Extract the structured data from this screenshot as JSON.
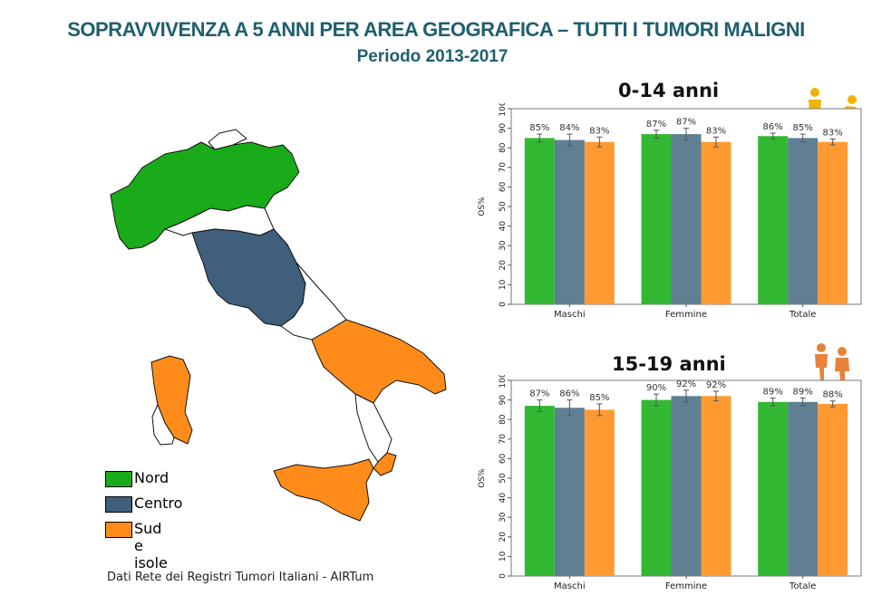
{
  "header": {
    "title": "SOPRAVVIVENZA A 5 ANNI PER AREA GEOGRAFICA – TUTTI I TUMORI MALIGNI",
    "subtitle": "Periodo 2013-2017"
  },
  "legend": {
    "items": [
      {
        "label": "Nord",
        "color": "#1aab1a"
      },
      {
        "label": "Centro",
        "color": "#3f5f7a"
      },
      {
        "label": "Sud e isole",
        "color": "#ff8c1a"
      }
    ]
  },
  "source": "Dati Rete dei Registri Tumori Italiani - AIRTum",
  "colors": {
    "nord": "#33b833",
    "centro": "#5f7f93",
    "sud": "#ff9a33",
    "map_white": "#ffffff",
    "icon": "#f0b400",
    "icon2": "#e8823a"
  },
  "icons": [
    "child-icon",
    "baby-icon",
    "teen-girl-icon",
    "teen-boy-icon"
  ],
  "chart_data": [
    {
      "type": "bar",
      "title": "0-14 anni",
      "ylabel": "OS%",
      "ylim": [
        0,
        100
      ],
      "yticks": [
        0,
        10,
        20,
        30,
        40,
        50,
        60,
        70,
        80,
        90,
        100
      ],
      "categories": [
        "Maschi",
        "Femmine",
        "Totale"
      ],
      "series": [
        {
          "values": [
            85,
            87,
            86
          ],
          "labels": [
            "85%",
            "87%",
            "86%"
          ],
          "err": [
            2,
            2,
            1.5
          ]
        },
        {
          "values": [
            84,
            87,
            85
          ],
          "labels": [
            "84%",
            "87%",
            "85%"
          ],
          "err": [
            3,
            3,
            2
          ]
        },
        {
          "values": [
            83,
            83,
            83
          ],
          "labels": [
            "83%",
            "83%",
            "83%"
          ],
          "err": [
            2.5,
            2.5,
            1.5
          ]
        }
      ]
    },
    {
      "type": "bar",
      "title": "15-19 anni",
      "ylabel": "OS%",
      "ylim": [
        0,
        100
      ],
      "yticks": [
        0,
        10,
        20,
        30,
        40,
        50,
        60,
        70,
        80,
        90,
        100
      ],
      "categories": [
        "Maschi",
        "Femmine",
        "Totale"
      ],
      "series": [
        {
          "values": [
            87,
            90,
            89
          ],
          "labels": [
            "87%",
            "90%",
            "89%"
          ],
          "err": [
            3,
            3,
            2
          ]
        },
        {
          "values": [
            86,
            92,
            89
          ],
          "labels": [
            "86%",
            "92%",
            "89%"
          ],
          "err": [
            4,
            3,
            2
          ]
        },
        {
          "values": [
            85,
            92,
            88
          ],
          "labels": [
            "85%",
            "92%",
            "88%"
          ],
          "err": [
            3,
            2.5,
            1.5
          ]
        }
      ]
    }
  ]
}
